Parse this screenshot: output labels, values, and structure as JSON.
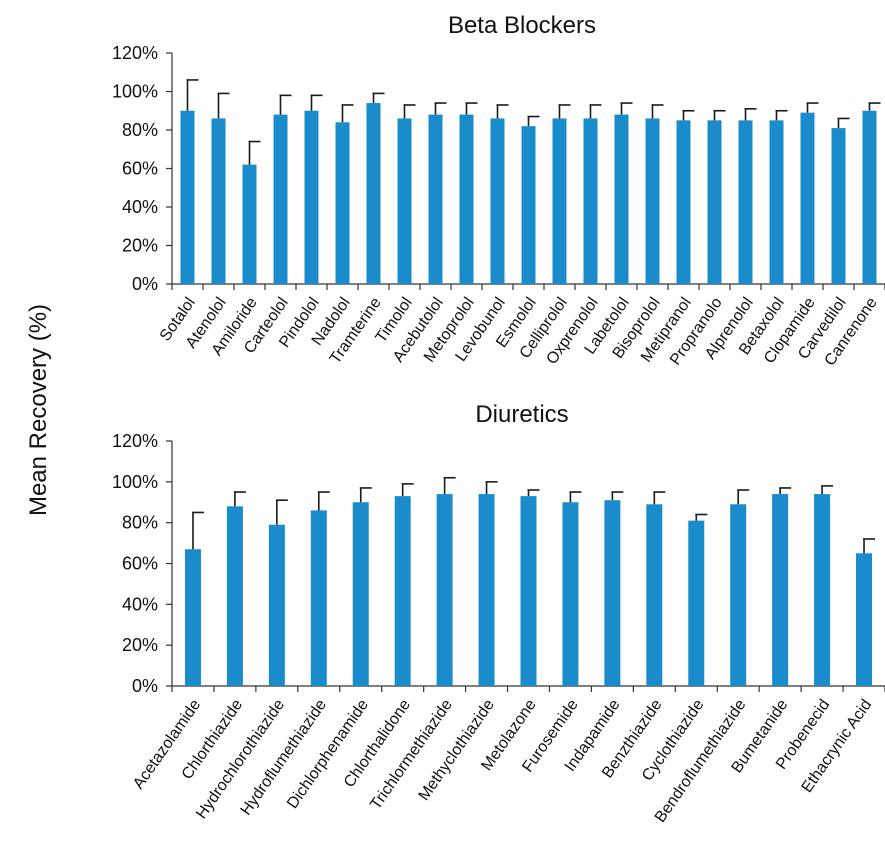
{
  "ylabel": "Mean Recovery (%)",
  "colors": {
    "bar": "#1a8ccc",
    "error": "#1a1a1a",
    "axis": "#333333"
  },
  "chart_data": [
    {
      "type": "bar",
      "title": "Beta Blockers",
      "ylabel": "Mean Recovery (%)",
      "ylim": [
        0,
        120
      ],
      "yticks": [
        "0%",
        "20%",
        "40%",
        "60%",
        "80%",
        "100%",
        "120%"
      ],
      "grid": false,
      "categories": [
        "Sotalol",
        "Atenolol",
        "Amiloride",
        "Carteolol",
        "Pindolol",
        "Nadolol",
        "Tramterine",
        "Timolol",
        "Acebutolol",
        "Metoprolol",
        "Levobunol",
        "Esmolol",
        "Celliprolol",
        "Oxprenolol",
        "Labetolol",
        "Bisoprolol",
        "Metipranol",
        "Propranolo",
        "Alprenolol",
        "Betaxolol",
        "Clopamide",
        "Carvedilol",
        "Canrenone"
      ],
      "values": [
        90,
        86,
        62,
        88,
        90,
        84,
        94,
        86,
        88,
        88,
        86,
        82,
        86,
        86,
        88,
        86,
        85,
        85,
        85,
        85,
        89,
        81,
        90
      ],
      "errors": [
        16,
        13,
        12,
        10,
        8,
        9,
        5,
        7,
        6,
        6,
        7,
        5,
        7,
        7,
        6,
        7,
        5,
        5,
        6,
        5,
        5,
        5,
        4
      ]
    },
    {
      "type": "bar",
      "title": "Diuretics",
      "ylabel": "Mean Recovery (%)",
      "ylim": [
        0,
        120
      ],
      "yticks": [
        "0%",
        "20%",
        "40%",
        "60%",
        "80%",
        "100%",
        "120%"
      ],
      "grid": false,
      "categories": [
        "Acetazolamide",
        "Chlorthiazide",
        "Hydrochlorothiazide",
        "Hydroflumethiazide",
        "Dichlorphenamide",
        "Chlorthalidone",
        "Trichlormethiazide",
        "Methyclothiazide",
        "Metolazone",
        "Furosemide",
        "Indapamide",
        "Benzthiazide",
        "Cyclothiazide",
        "Bendroflumethiazide",
        "Bumetanide",
        "Probenecid",
        "Ethacrynic Acid"
      ],
      "values": [
        67,
        88,
        79,
        86,
        90,
        93,
        94,
        94,
        93,
        90,
        91,
        89,
        81,
        89,
        94,
        94,
        65
      ],
      "errors": [
        18,
        7,
        12,
        9,
        7,
        6,
        8,
        6,
        3,
        5,
        4,
        6,
        3,
        7,
        3,
        4,
        7
      ]
    }
  ]
}
